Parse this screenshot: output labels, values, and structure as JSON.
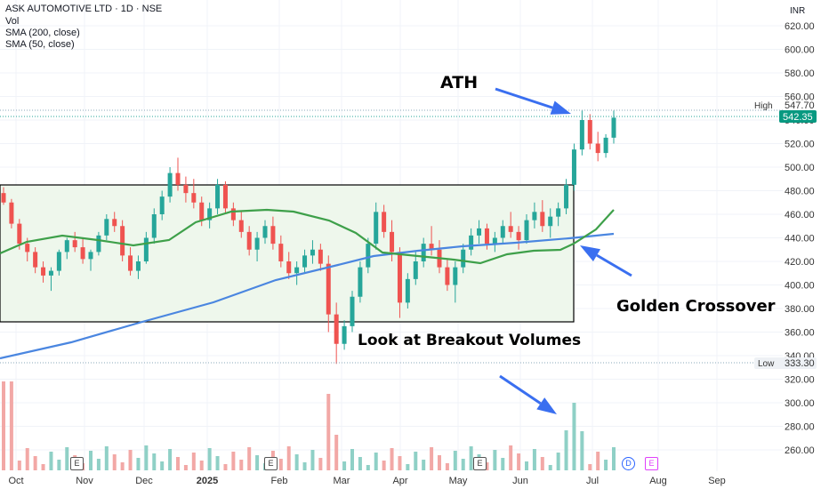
{
  "header": {
    "symbol": "ASK AUTOMOTIVE LTD · 1D · NSE",
    "indicators": [
      "Vol",
      "SMA (200, close)",
      "SMA (50, close)"
    ],
    "currency": "INR"
  },
  "annotations": {
    "ath": "ATH",
    "golden_crossover": "Golden Crossover",
    "breakout_volumes": "Look at Breakout Volumes"
  },
  "events": [
    "E",
    "E",
    "E",
    "D",
    "E"
  ],
  "colors": {
    "up": "#26a69a",
    "down": "#ef5350",
    "sma200": "#4a86e0",
    "sma50": "#3ea04a",
    "box_fill": "#eef7ec",
    "arrow": "#3a6ff0",
    "last_price_bg": "#089981"
  },
  "chart_data": {
    "type": "candlestick",
    "title": "ASK AUTOMOTIVE LTD · 1D · NSE",
    "ylabel": "INR",
    "ylim": [
      250,
      630
    ],
    "y_ticks": [
      "260.00",
      "280.00",
      "300.00",
      "320.00",
      "340.00",
      "360.00",
      "380.00",
      "400.00",
      "420.00",
      "440.00",
      "460.00",
      "480.00",
      "500.00",
      "520.00",
      "540.00",
      "560.00",
      "580.00",
      "600.00",
      "620.00"
    ],
    "x_ticks": [
      "Oct",
      "Nov",
      "Dec",
      "2025",
      "Feb",
      "Mar",
      "Apr",
      "May",
      "Jun",
      "Jul",
      "Aug",
      "Sep"
    ],
    "high": {
      "label": "High",
      "value": "547.70"
    },
    "low": {
      "label": "Low",
      "value": "333.30"
    },
    "last_price": "542.35",
    "consolidation_range": [
      370,
      485
    ],
    "candles_ohlc_approx": [
      [
        478,
        483,
        468,
        470
      ],
      [
        470,
        473,
        448,
        452
      ],
      [
        452,
        456,
        430,
        435
      ],
      [
        435,
        440,
        420,
        428
      ],
      [
        428,
        432,
        410,
        415
      ],
      [
        415,
        420,
        402,
        408
      ],
      [
        408,
        415,
        395,
        412
      ],
      [
        412,
        430,
        408,
        428
      ],
      [
        428,
        440,
        422,
        438
      ],
      [
        438,
        445,
        428,
        432
      ],
      [
        432,
        440,
        418,
        422
      ],
      [
        422,
        430,
        412,
        428
      ],
      [
        428,
        445,
        425,
        442
      ],
      [
        442,
        460,
        438,
        456
      ],
      [
        456,
        462,
        445,
        450
      ],
      [
        450,
        455,
        420,
        425
      ],
      [
        425,
        432,
        408,
        412
      ],
      [
        412,
        425,
        405,
        420
      ],
      [
        420,
        445,
        418,
        440
      ],
      [
        440,
        465,
        435,
        460
      ],
      [
        460,
        480,
        455,
        475
      ],
      [
        475,
        500,
        470,
        495
      ],
      [
        495,
        508,
        480,
        485
      ],
      [
        485,
        492,
        470,
        478
      ],
      [
        478,
        490,
        465,
        470
      ],
      [
        470,
        475,
        450,
        455
      ],
      [
        455,
        470,
        448,
        465
      ],
      [
        465,
        490,
        460,
        485
      ],
      [
        485,
        488,
        460,
        465
      ],
      [
        465,
        470,
        450,
        455
      ],
      [
        455,
        462,
        440,
        445
      ],
      [
        445,
        450,
        425,
        430
      ],
      [
        430,
        445,
        420,
        440
      ],
      [
        440,
        455,
        435,
        450
      ],
      [
        450,
        458,
        430,
        435
      ],
      [
        435,
        442,
        415,
        420
      ],
      [
        420,
        428,
        405,
        410
      ],
      [
        410,
        420,
        400,
        415
      ],
      [
        415,
        430,
        410,
        425
      ],
      [
        425,
        438,
        418,
        430
      ],
      [
        430,
        435,
        412,
        418
      ],
      [
        418,
        425,
        360,
        375
      ],
      [
        375,
        385,
        333,
        350
      ],
      [
        350,
        370,
        345,
        365
      ],
      [
        365,
        395,
        360,
        390
      ],
      [
        390,
        420,
        385,
        415
      ],
      [
        415,
        440,
        410,
        435
      ],
      [
        435,
        470,
        430,
        462
      ],
      [
        462,
        468,
        440,
        445
      ],
      [
        445,
        455,
        420,
        428
      ],
      [
        428,
        432,
        372,
        385
      ],
      [
        385,
        410,
        380,
        405
      ],
      [
        405,
        428,
        400,
        420
      ],
      [
        420,
        440,
        415,
        435
      ],
      [
        435,
        450,
        425,
        430
      ],
      [
        430,
        438,
        410,
        415
      ],
      [
        415,
        422,
        395,
        400
      ],
      [
        400,
        420,
        385,
        415
      ],
      [
        415,
        435,
        410,
        430
      ],
      [
        430,
        448,
        425,
        442
      ],
      [
        442,
        455,
        435,
        448
      ],
      [
        448,
        452,
        430,
        435
      ],
      [
        435,
        445,
        428,
        440
      ],
      [
        440,
        455,
        435,
        450
      ],
      [
        450,
        462,
        440,
        445
      ],
      [
        445,
        450,
        430,
        438
      ],
      [
        438,
        460,
        435,
        455
      ],
      [
        455,
        470,
        448,
        462
      ],
      [
        462,
        472,
        445,
        450
      ],
      [
        450,
        465,
        440,
        458
      ],
      [
        458,
        470,
        450,
        465
      ],
      [
        465,
        490,
        460,
        485
      ],
      [
        485,
        520,
        480,
        515
      ],
      [
        515,
        548,
        510,
        540
      ],
      [
        540,
        545,
        515,
        520
      ],
      [
        520,
        530,
        505,
        512
      ],
      [
        512,
        528,
        508,
        525
      ],
      [
        525,
        548,
        520,
        542
      ]
    ],
    "volume_notes": "Tall breakout volume bars around early March and late June"
  }
}
